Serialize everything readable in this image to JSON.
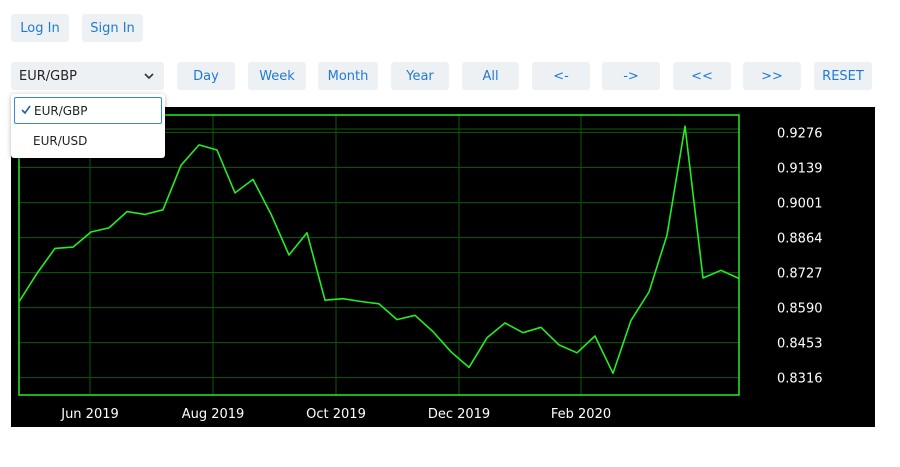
{
  "auth": {
    "login_label": "Log In",
    "signin_label": "Sign In"
  },
  "toolbar": {
    "pair_selected": "EUR/GBP",
    "range_buttons": [
      "Day",
      "Week",
      "Month",
      "Year",
      "All"
    ],
    "nav_buttons": [
      "<-",
      "->",
      "<<",
      ">>"
    ],
    "reset_label": "RESET"
  },
  "dropdown": {
    "options": [
      {
        "label": "EUR/GBP",
        "selected": true
      },
      {
        "label": "EUR/USD",
        "selected": false
      }
    ]
  },
  "icons": {
    "select_arrow": "chevron-down-icon",
    "selected_mark": "check-icon"
  },
  "colors": {
    "accent": "#1f7ad6",
    "line": "#22ee22",
    "grid": "#0b5a0b",
    "chart_bg": "#000000"
  },
  "chart_data": {
    "type": "line",
    "title": "",
    "xlabel": "",
    "ylabel": "",
    "x_ticks": [
      "Jun 2019",
      "Aug 2019",
      "Oct 2019",
      "Dec 2019",
      "Feb 2020"
    ],
    "y_ticks": [
      "0.9276",
      "0.9139",
      "0.9001",
      "0.8864",
      "0.8727",
      "0.8590",
      "0.8453",
      "0.8316"
    ],
    "ylim": [
      0.8248,
      0.9344
    ],
    "grid": true,
    "series": [
      {
        "values": [
          0.8613,
          0.8724,
          0.8822,
          0.8827,
          0.8886,
          0.8902,
          0.8966,
          0.8955,
          0.8973,
          0.9147,
          0.9227,
          0.9207,
          0.9039,
          0.9092,
          0.8956,
          0.8796,
          0.8883,
          0.8619,
          0.8625,
          0.8614,
          0.8605,
          0.8543,
          0.856,
          0.8496,
          0.8417,
          0.8356,
          0.8472,
          0.853,
          0.8492,
          0.8513,
          0.8444,
          0.8413,
          0.8479,
          0.8333,
          0.854,
          0.8651,
          0.8874,
          0.93,
          0.8706,
          0.8736,
          0.8704
        ]
      }
    ]
  }
}
